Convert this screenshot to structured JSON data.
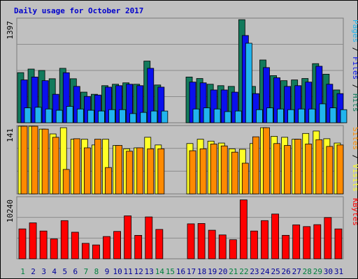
{
  "chart_data": {
    "type": "bar",
    "title": "Daily usage for October 2017",
    "colors": {
      "background": "#c0c0c0",
      "frame": "#b8b8b8",
      "pages": "#127a5c",
      "files": "#0a10ee",
      "hits": "#21b4ee",
      "visits": "#ffff26",
      "sites": "#ff8a00",
      "kbytes": "#ff0000",
      "title": "#0000cc",
      "weekday": "#000099",
      "weekend": "#00803e"
    },
    "days": [
      {
        "label": "1",
        "weekend": true
      },
      {
        "label": "2",
        "weekend": false
      },
      {
        "label": "3",
        "weekend": false
      },
      {
        "label": "4",
        "weekend": false
      },
      {
        "label": "5",
        "weekend": false
      },
      {
        "label": "6",
        "weekend": false
      },
      {
        "label": "7",
        "weekend": true
      },
      {
        "label": "8",
        "weekend": true
      },
      {
        "label": "9",
        "weekend": false
      },
      {
        "label": "10",
        "weekend": false
      },
      {
        "label": "11",
        "weekend": false
      },
      {
        "label": "12",
        "weekend": false
      },
      {
        "label": "13",
        "weekend": false
      },
      {
        "label": "14",
        "weekend": true
      },
      {
        "label": "15",
        "weekend": true
      },
      {
        "label": "16",
        "weekend": false
      },
      {
        "label": "17",
        "weekend": false
      },
      {
        "label": "18",
        "weekend": false
      },
      {
        "label": "19",
        "weekend": false
      },
      {
        "label": "20",
        "weekend": false
      },
      {
        "label": "21",
        "weekend": true
      },
      {
        "label": "22",
        "weekend": true
      },
      {
        "label": "23",
        "weekend": false
      },
      {
        "label": "24",
        "weekend": false
      },
      {
        "label": "25",
        "weekend": false
      },
      {
        "label": "26",
        "weekend": false
      },
      {
        "label": "27",
        "weekend": false
      },
      {
        "label": "28",
        "weekend": true
      },
      {
        "label": "29",
        "weekend": true
      },
      {
        "label": "30",
        "weekend": false
      },
      {
        "label": "31",
        "weekend": false
      }
    ],
    "panels": [
      {
        "max_label": "1397",
        "ylim": [
          0,
          1397
        ],
        "legend": [
          {
            "text": "Pages",
            "color": "#21b4ee"
          },
          {
            "text": " / ",
            "color": "#000000"
          },
          {
            "text": "Files",
            "color": "#0a10ee"
          },
          {
            "text": " / ",
            "color": "#000000"
          },
          {
            "text": "Hits",
            "color": "#127a5c"
          }
        ],
        "series": [
          {
            "name": "Hits",
            "color": "#127a5c",
            "values": [
              674,
              722,
              703,
              592,
              732,
              592,
              412,
              383,
              499,
              518,
              537,
              518,
              829,
              508,
              0,
              0,
              615,
              595,
              518,
              499,
              489,
              1386,
              489,
              844,
              634,
              566,
              576,
              595,
              795,
              653,
              441
            ]
          },
          {
            "name": "Files",
            "color": "#0a10ee",
            "values": [
              576,
              615,
              566,
              383,
              673,
              489,
              354,
              373,
              479,
              499,
              518,
              499,
              732,
              479,
              0,
              0,
              547,
              537,
              441,
              441,
              412,
              1173,
              392,
              742,
              605,
              489,
              499,
              547,
              760,
              518,
              392
            ]
          },
          {
            "name": "Pages",
            "color": "#21b4ee",
            "values": [
              200,
              208,
              185,
              168,
              220,
              185,
              168,
              158,
              176,
              176,
              123,
              139,
              158,
              158,
              0,
              0,
              185,
              200,
              185,
              150,
              158,
              1069,
              176,
              200,
              185,
              176,
              185,
              185,
              254,
              200,
              176
            ]
          }
        ]
      },
      {
        "max_label": "141",
        "ylim": [
          0,
          141
        ],
        "legend": [
          {
            "text": "Sites",
            "color": "#ff8a00"
          },
          {
            "text": " / ",
            "color": "#000000"
          },
          {
            "text": "Visits",
            "color": "#ffff26"
          }
        ],
        "series": [
          {
            "name": "Visits",
            "color": "#ffff26",
            "values": [
              141,
              141,
              135,
              125,
              138,
              114,
              114,
              102,
              114,
              101,
              94,
              96,
              118,
              102,
              0,
              0,
              105,
              114,
              110,
              106,
              94,
              93,
              105,
              138,
              120,
              118,
              114,
              126,
              131,
              115,
              106
            ]
          },
          {
            "name": "Sites",
            "color": "#ff8a00",
            "values": [
              141,
              141,
              135,
              118,
              51,
              115,
              96,
              114,
              55,
              101,
              89,
              96,
              94,
              94,
              0,
              0,
              90,
              94,
              104,
              100,
              87,
              64,
              119,
              138,
              105,
              101,
              114,
              104,
              113,
              99,
              102
            ]
          }
        ]
      },
      {
        "max_label": "10240",
        "ylim": [
          0,
          10240
        ],
        "legend": [
          {
            "text": "KBytes",
            "color": "#ff0000"
          }
        ],
        "series": [
          {
            "name": "KBytes",
            "color": "#ff0000",
            "values": [
              4986,
              5993,
              4631,
              3315,
              6365,
              4431,
              2574,
              2309,
              3714,
              4564,
              7163,
              3907,
              6980,
              4897,
              0,
              0,
              5830,
              5886,
              4764,
              3980,
              3180,
              9822,
              4631,
              6367,
              7465,
              3914,
              5661,
              5373,
              5693,
              6879,
              4983
            ]
          }
        ]
      }
    ]
  }
}
